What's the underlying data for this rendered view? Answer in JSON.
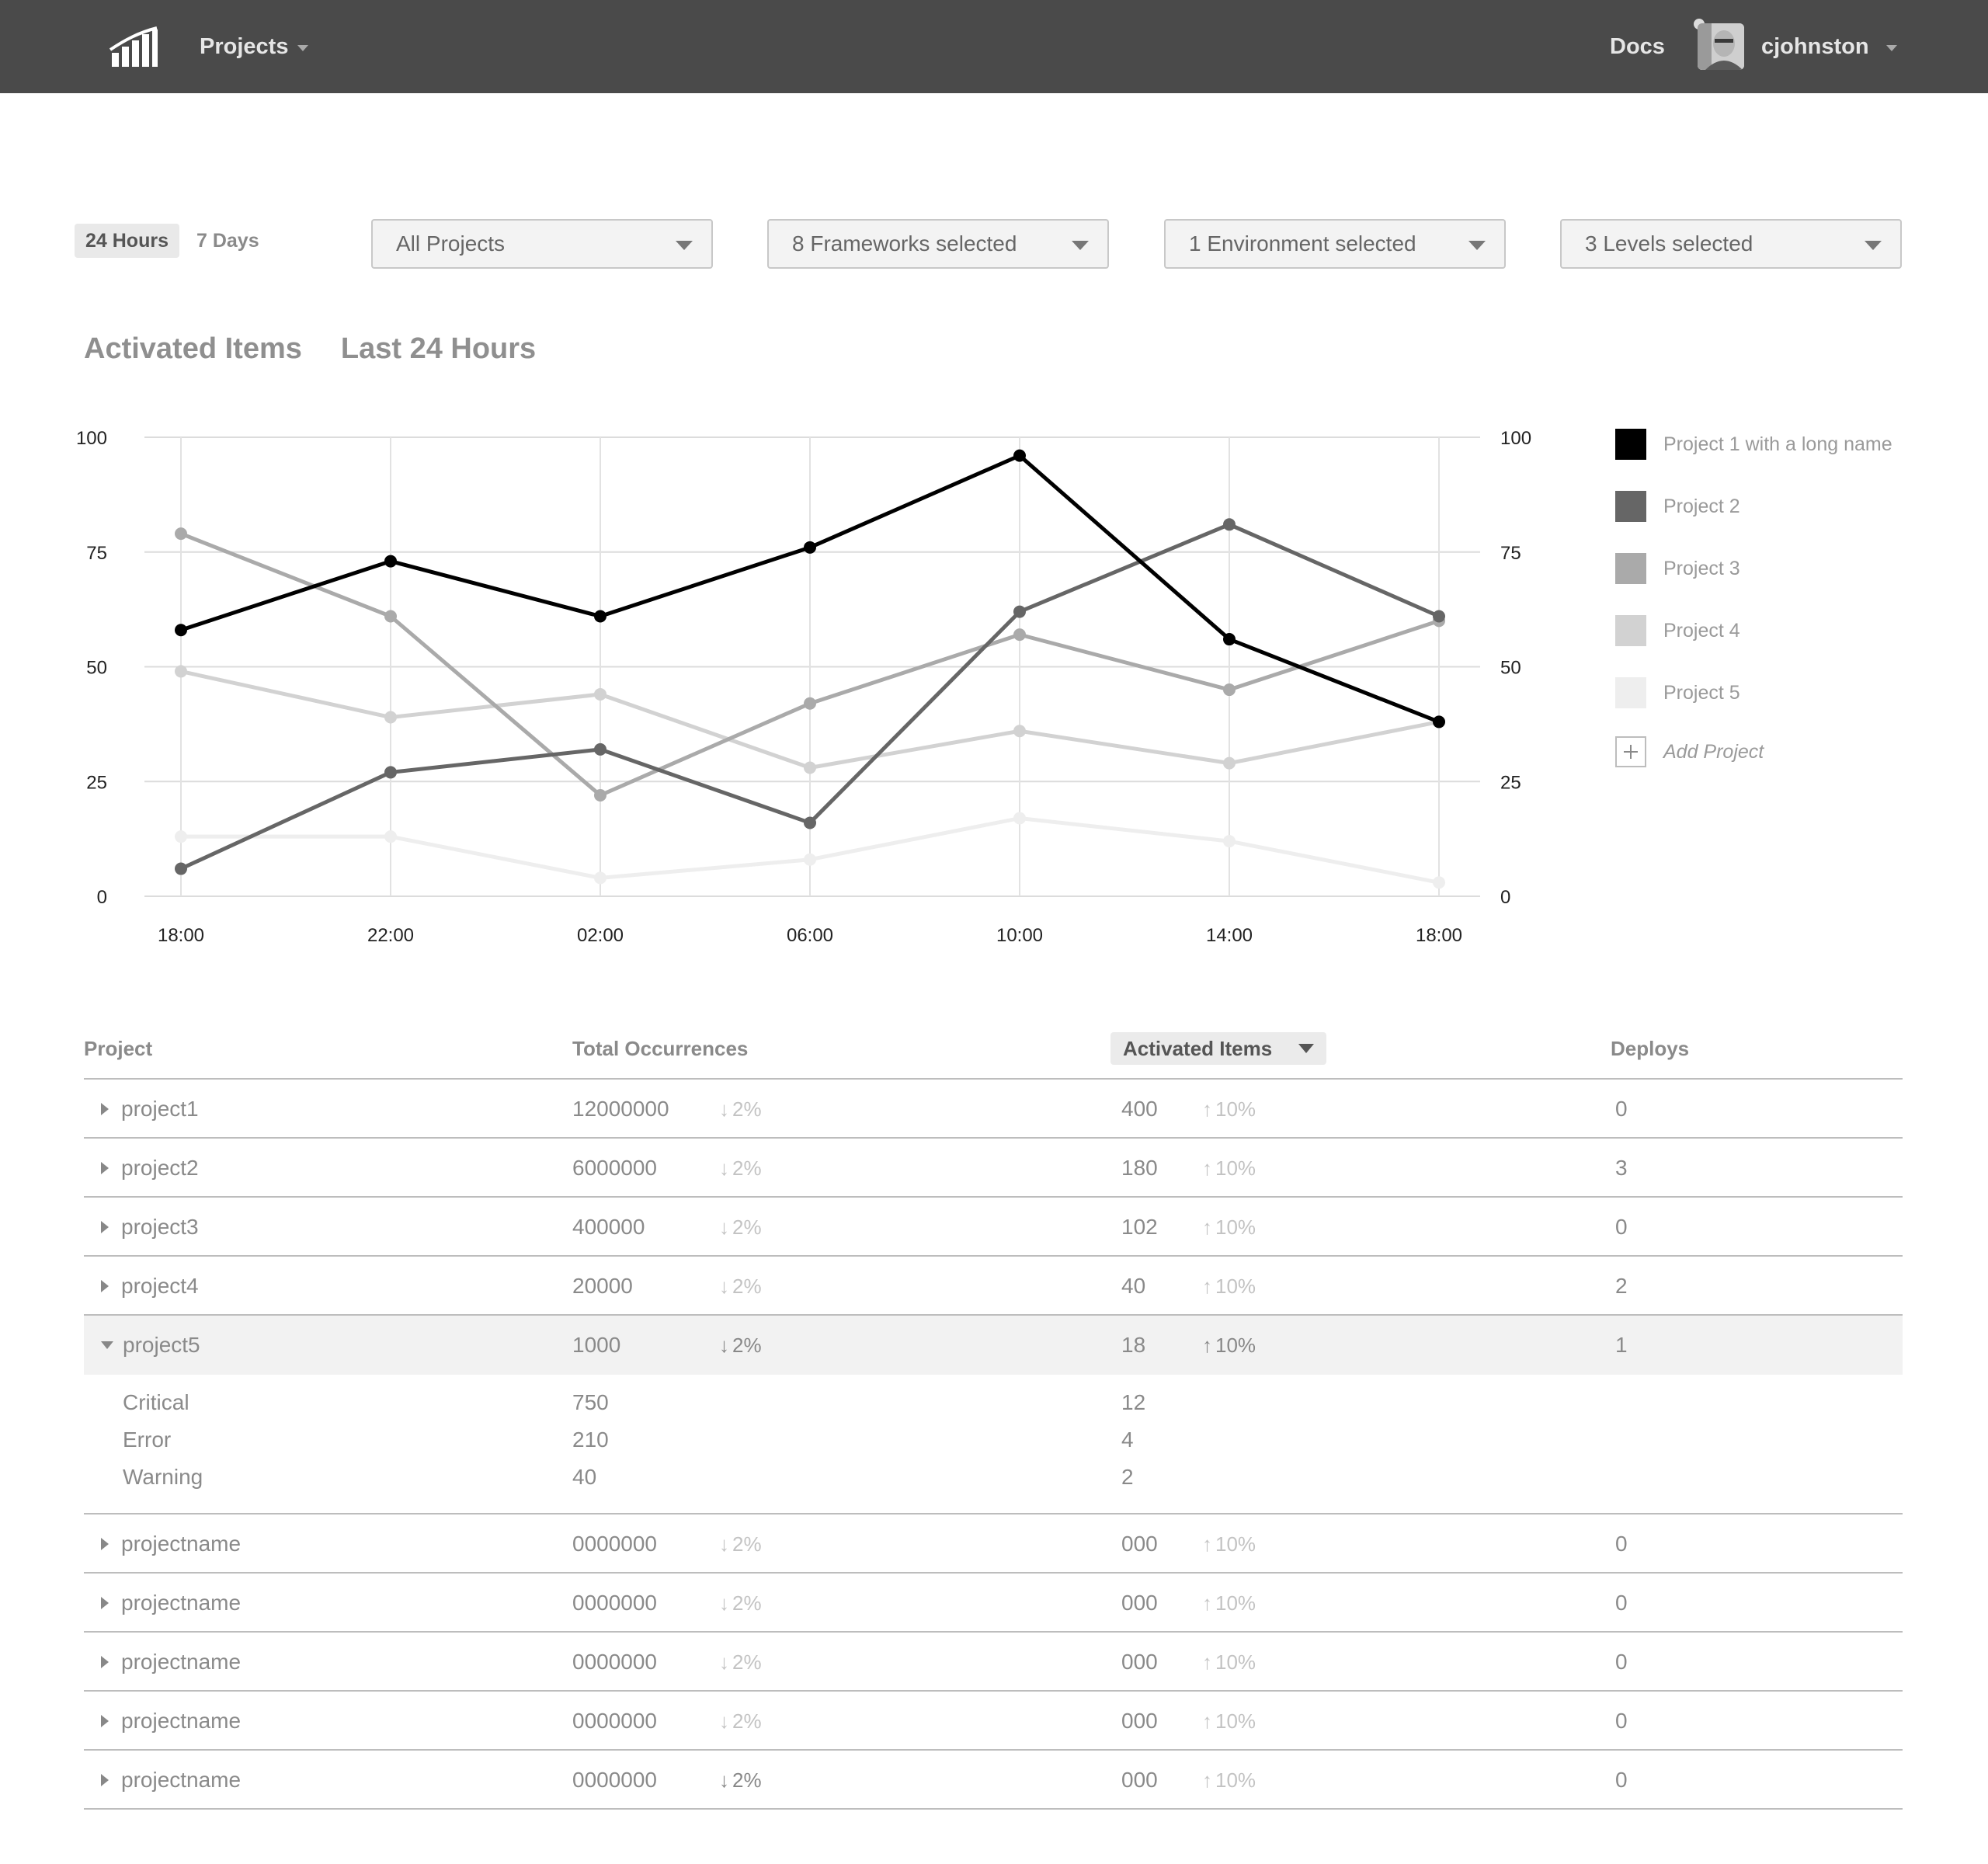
{
  "header": {
    "projects_label": "Projects",
    "docs_label": "Docs",
    "username": "cjohnston"
  },
  "filters": {
    "time_options": [
      "24 Hours",
      "7 Days"
    ],
    "time_selected": "24 Hours",
    "projects": "All Projects",
    "frameworks": "8 Frameworks selected",
    "environments": "1 Environment selected",
    "levels": "3 Levels selected"
  },
  "section": {
    "title": "Activated Items",
    "subtitle": "Last 24 Hours"
  },
  "chart_data": {
    "type": "line",
    "x": [
      "18:00",
      "22:00",
      "02:00",
      "06:00",
      "10:00",
      "14:00",
      "18:00"
    ],
    "ylim": [
      0,
      100
    ],
    "yticks": [
      0,
      25,
      50,
      75,
      100
    ],
    "grid": true,
    "legend_position": "right",
    "series": [
      {
        "name": "Project 1 with a long name",
        "color": "#000000",
        "values": [
          58,
          73,
          61,
          76,
          96,
          56,
          38
        ]
      },
      {
        "name": "Project 2",
        "color": "#666666",
        "values": [
          6,
          27,
          32,
          16,
          62,
          81,
          61
        ]
      },
      {
        "name": "Project 3",
        "color": "#aaaaaa",
        "values": [
          79,
          61,
          22,
          42,
          57,
          45,
          60
        ]
      },
      {
        "name": "Project 4",
        "color": "#d2d2d2",
        "values": [
          49,
          39,
          44,
          28,
          36,
          29,
          38
        ]
      },
      {
        "name": "Project 5",
        "color": "#eeeeee",
        "values": [
          13,
          13,
          4,
          8,
          17,
          12,
          3
        ]
      }
    ]
  },
  "legend": {
    "add_label": "Add Project"
  },
  "table": {
    "headers": {
      "project": "Project",
      "total": "Total Occurrences",
      "activated": "Activated Items",
      "deploys": "Deploys"
    },
    "rows": [
      {
        "name": "project1",
        "total": "12000000",
        "total_delta": "2%",
        "activated": "400",
        "activated_delta": "10%",
        "deploys": "0"
      },
      {
        "name": "project2",
        "total": "6000000",
        "total_delta": "2%",
        "activated": "180",
        "activated_delta": "10%",
        "deploys": "3"
      },
      {
        "name": "project3",
        "total": "400000",
        "total_delta": "2%",
        "activated": "102",
        "activated_delta": "10%",
        "deploys": "0"
      },
      {
        "name": "project4",
        "total": "20000",
        "total_delta": "2%",
        "activated": "40",
        "activated_delta": "10%",
        "deploys": "2"
      },
      {
        "name": "project5",
        "total": "1000",
        "total_delta": "2%",
        "activated": "18",
        "activated_delta": "10%",
        "deploys": "1",
        "expanded": true,
        "levels": [
          {
            "level": "Critical",
            "total": "750",
            "activated": "12"
          },
          {
            "level": "Error",
            "total": "210",
            "activated": "4"
          },
          {
            "level": "Warning",
            "total": "40",
            "activated": "2"
          }
        ]
      },
      {
        "name": "projectname",
        "total": "0000000",
        "total_delta": "2%",
        "activated": "000",
        "activated_delta": "10%",
        "deploys": "0"
      },
      {
        "name": "projectname",
        "total": "0000000",
        "total_delta": "2%",
        "activated": "000",
        "activated_delta": "10%",
        "deploys": "0"
      },
      {
        "name": "projectname",
        "total": "0000000",
        "total_delta": "2%",
        "activated": "000",
        "activated_delta": "10%",
        "deploys": "0"
      },
      {
        "name": "projectname",
        "total": "0000000",
        "total_delta": "2%",
        "activated": "000",
        "activated_delta": "10%",
        "deploys": "0"
      },
      {
        "name": "projectname",
        "total": "0000000",
        "total_delta": "2%",
        "activated": "000",
        "activated_delta": "10%",
        "deploys": "0"
      }
    ]
  }
}
